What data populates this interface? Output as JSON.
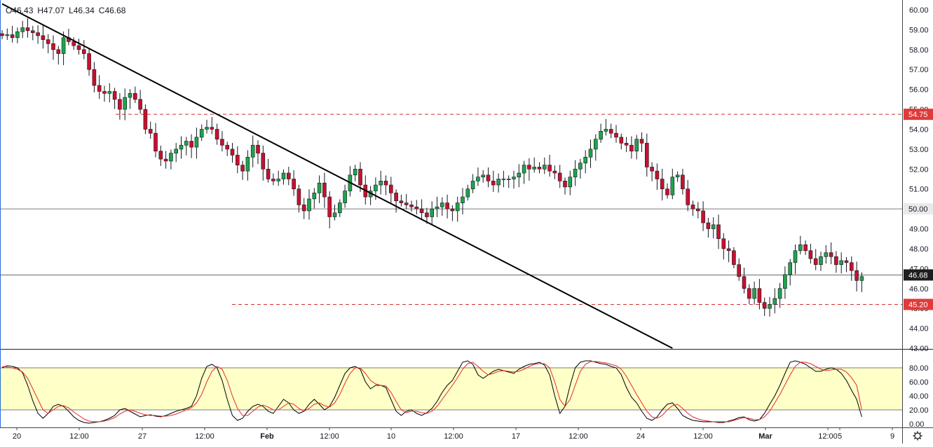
{
  "ohlc_legend": {
    "open": "O46.43",
    "high": "H47.07",
    "low": "L46.34",
    "close": "C46.68"
  },
  "colors": {
    "up": "#26a69a",
    "up_fill": "#1fa34a",
    "down": "#c8102e",
    "wick": "#131722",
    "trendline": "#000000",
    "level": "#d32f2f",
    "stoch_band": "#ffffc8",
    "stoch_k": "#000000",
    "stoch_d": "#e52b2b",
    "axis_text": "#131722",
    "label_red": "#e03a3a",
    "label_dark": "#1e1e1e"
  },
  "chart_data": [
    {
      "type": "candlestick",
      "title": "",
      "ylim": [
        43.0,
        60.0
      ],
      "y_ticks": [
        "43.00",
        "44.00",
        "45.00",
        "46.00",
        "47.00",
        "48.00",
        "49.00",
        "50.00",
        "51.00",
        "52.00",
        "53.00",
        "54.00",
        "55.00",
        "56.00",
        "57.00",
        "58.00",
        "59.00",
        "60.00"
      ],
      "x_ticks": [
        "20",
        "12:00",
        "27",
        "12:00",
        "Feb",
        "12:00",
        "10",
        "12:00",
        "17",
        "12:00",
        "24",
        "12:00",
        "Mar",
        "12:00",
        "5",
        "9"
      ],
      "price_labels": [
        {
          "text": "54.75",
          "value": 54.75,
          "style": "red"
        },
        {
          "text": "50.00",
          "value": 50.0,
          "style": "gray"
        },
        {
          "text": "46.68",
          "value": 46.68,
          "style": "dark"
        },
        {
          "text": "45.20",
          "value": 45.2,
          "style": "red"
        }
      ],
      "horizontal_lines": [
        {
          "value": 54.75,
          "style": "dashed",
          "color": "red"
        },
        {
          "value": 50.0,
          "style": "solid",
          "color": "gray"
        },
        {
          "value": 46.68,
          "style": "solid",
          "color": "gray"
        },
        {
          "value": 45.2,
          "style": "dashed",
          "color": "red"
        }
      ],
      "trendline": {
        "start": {
          "bar": 0,
          "price": 60.3
        },
        "end": {
          "bar": 131,
          "price": 43.0
        }
      },
      "closes": [
        58.7,
        58.75,
        58.6,
        58.9,
        59.1,
        58.95,
        58.85,
        58.7,
        58.5,
        58.3,
        58.0,
        57.8,
        58.6,
        58.4,
        58.2,
        58.0,
        57.8,
        57.0,
        56.2,
        55.9,
        55.8,
        55.9,
        55.5,
        55.0,
        55.6,
        55.8,
        55.5,
        55.0,
        54.0,
        53.8,
        52.9,
        52.5,
        52.4,
        52.8,
        53.0,
        53.2,
        53.4,
        53.1,
        53.6,
        54.0,
        54.1,
        54.0,
        53.5,
        53.2,
        53.0,
        52.7,
        52.2,
        51.9,
        52.6,
        53.2,
        52.8,
        52.0,
        51.5,
        51.4,
        51.5,
        51.8,
        51.5,
        51.0,
        50.2,
        49.9,
        50.5,
        50.8,
        51.3,
        50.6,
        49.6,
        49.8,
        50.3,
        50.9,
        51.7,
        52.0,
        51.2,
        50.6,
        50.9,
        51.2,
        51.4,
        51.2,
        50.8,
        50.4,
        50.3,
        50.2,
        50.1,
        50.0,
        49.8,
        49.6,
        50.0,
        50.1,
        50.3,
        50.0,
        49.9,
        50.3,
        50.6,
        51.0,
        51.4,
        51.6,
        51.7,
        51.4,
        51.2,
        51.5,
        51.5,
        51.5,
        51.6,
        51.8,
        52.2,
        52.0,
        52.1,
        52.0,
        52.2,
        51.9,
        51.8,
        51.4,
        51.1,
        51.6,
        52.0,
        52.3,
        52.6,
        53.0,
        53.5,
        53.9,
        54.0,
        53.8,
        53.6,
        53.3,
        53.2,
        52.9,
        53.5,
        53.3,
        52.1,
        51.9,
        51.5,
        51.0,
        50.7,
        51.6,
        51.7,
        51.0,
        50.2,
        50.0,
        49.9,
        49.3,
        49.0,
        49.2,
        48.5,
        48.0,
        47.9,
        47.2,
        46.6,
        46.0,
        45.5,
        46.0,
        45.3,
        45.0,
        45.2,
        45.5,
        46.0,
        46.7,
        47.3,
        47.9,
        48.2,
        47.9,
        47.5,
        47.2,
        47.6,
        47.8,
        47.6,
        47.2,
        47.4,
        47.3,
        46.9,
        46.4,
        46.6
      ]
    },
    {
      "type": "line",
      "title": "",
      "ylim": [
        0,
        100
      ],
      "y_ticks": [
        "0.00",
        "20.00",
        "40.00",
        "60.00",
        "80.00"
      ],
      "band": [
        20,
        80
      ],
      "series": [
        {
          "key": "k",
          "values": [
            80,
            83,
            82,
            80,
            73,
            55,
            33,
            15,
            8,
            15,
            25,
            28,
            25,
            18,
            10,
            5,
            2,
            1,
            2,
            3,
            5,
            8,
            12,
            20,
            22,
            18,
            14,
            10,
            12,
            13,
            11,
            10,
            12,
            15,
            18,
            20,
            22,
            25,
            40,
            65,
            82,
            85,
            80,
            62,
            35,
            12,
            5,
            8,
            18,
            25,
            28,
            25,
            18,
            15,
            25,
            35,
            30,
            20,
            15,
            18,
            28,
            35,
            28,
            20,
            25,
            38,
            55,
            72,
            80,
            82,
            78,
            60,
            50,
            55,
            55,
            52,
            35,
            18,
            12,
            18,
            20,
            15,
            12,
            16,
            22,
            32,
            45,
            55,
            62,
            75,
            88,
            90,
            85,
            70,
            65,
            70,
            75,
            78,
            76,
            74,
            72,
            78,
            82,
            85,
            86,
            88,
            84,
            70,
            40,
            15,
            25,
            55,
            80,
            88,
            90,
            90,
            88,
            86,
            85,
            82,
            80,
            70,
            52,
            38,
            30,
            18,
            8,
            5,
            10,
            20,
            28,
            30,
            22,
            12,
            8,
            5,
            4,
            3,
            3,
            3,
            2,
            2,
            4,
            6,
            9,
            10,
            6,
            4,
            6,
            15,
            28,
            40,
            55,
            72,
            88,
            90,
            88,
            85,
            80,
            75,
            75,
            78,
            80,
            78,
            72,
            62,
            48,
            35,
            10
          ]
        },
        {
          "key": "d",
          "values": [
            82,
            81,
            80,
            78,
            74,
            65,
            50,
            35,
            20,
            15,
            20,
            25,
            26,
            23,
            17,
            12,
            7,
            4,
            3,
            3,
            4,
            6,
            9,
            14,
            18,
            20,
            18,
            15,
            13,
            12,
            12,
            11,
            11,
            12,
            14,
            17,
            20,
            23,
            30,
            42,
            60,
            75,
            82,
            78,
            62,
            40,
            22,
            12,
            12,
            18,
            24,
            27,
            24,
            20,
            20,
            25,
            30,
            28,
            22,
            18,
            22,
            28,
            30,
            26,
            24,
            30,
            42,
            58,
            72,
            80,
            80,
            72,
            62,
            57,
            55,
            54,
            45,
            32,
            20,
            16,
            18,
            18,
            16,
            15,
            18,
            25,
            35,
            45,
            55,
            66,
            78,
            86,
            88,
            82,
            75,
            70,
            72,
            75,
            76,
            75,
            74,
            75,
            78,
            82,
            85,
            86,
            86,
            80,
            60,
            35,
            25,
            35,
            55,
            75,
            85,
            89,
            89,
            88,
            87,
            85,
            83,
            78,
            68,
            55,
            42,
            30,
            18,
            10,
            8,
            12,
            20,
            26,
            28,
            22,
            15,
            10,
            7,
            5,
            4,
            3,
            3,
            3,
            3,
            5,
            7,
            9,
            8,
            6,
            6,
            10,
            18,
            30,
            42,
            56,
            70,
            82,
            88,
            88,
            86,
            82,
            78,
            76,
            77,
            78,
            78,
            74,
            66,
            55,
            20
          ]
        }
      ]
    }
  ]
}
